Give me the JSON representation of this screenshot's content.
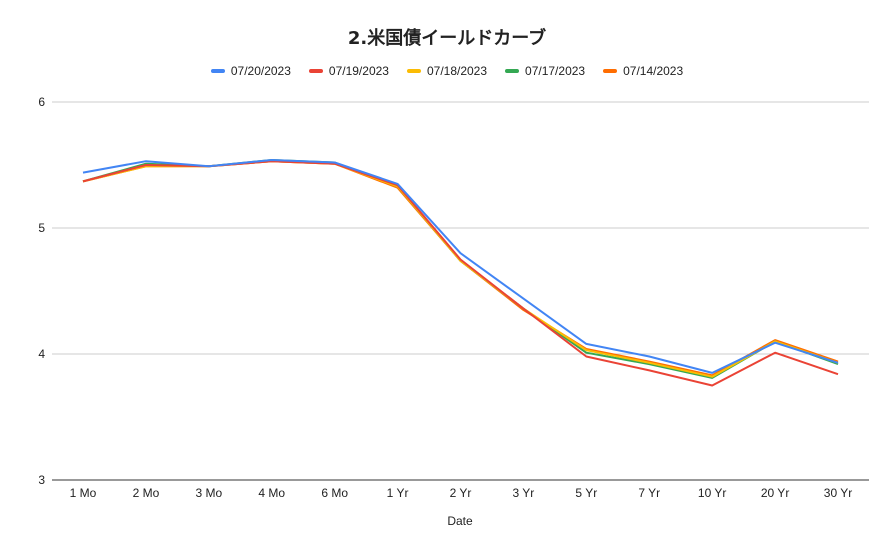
{
  "chart_data": {
    "type": "line",
    "title": "2.米国債イールドカーブ",
    "xlabel": "Date",
    "ylabel": "",
    "ylim": [
      3,
      6
    ],
    "yticks": [
      3,
      4,
      5,
      6
    ],
    "grid": true,
    "legend_position": "top",
    "categories": [
      "1 Mo",
      "2 Mo",
      "3 Mo",
      "4 Mo",
      "6 Mo",
      "1 Yr",
      "2 Yr",
      "3 Yr",
      "5 Yr",
      "7 Yr",
      "10 Yr",
      "20 Yr",
      "30 Yr"
    ],
    "series": [
      {
        "name": "07/20/2023",
        "color": "#4285F4",
        "values": [
          5.44,
          5.53,
          5.49,
          5.54,
          5.52,
          5.35,
          4.8,
          4.44,
          4.08,
          3.98,
          3.85,
          4.09,
          3.93
        ]
      },
      {
        "name": "07/19/2023",
        "color": "#EA4335",
        "values": [
          5.37,
          5.5,
          5.49,
          5.53,
          5.51,
          5.34,
          4.75,
          4.36,
          3.98,
          3.87,
          3.75,
          4.01,
          3.84
        ]
      },
      {
        "name": "07/18/2023",
        "color": "#FBBC04",
        "values": [
          5.37,
          5.49,
          5.49,
          5.53,
          5.51,
          5.33,
          4.74,
          4.36,
          4.03,
          3.93,
          3.82,
          4.1,
          3.93
        ]
      },
      {
        "name": "07/17/2023",
        "color": "#34A853",
        "values": [
          5.37,
          5.51,
          5.49,
          5.54,
          5.52,
          5.33,
          4.74,
          4.36,
          4.01,
          3.92,
          3.81,
          4.1,
          3.92
        ]
      },
      {
        "name": "07/14/2023",
        "color": "#FF6D01",
        "values": [
          5.37,
          5.49,
          5.49,
          5.53,
          5.51,
          5.32,
          4.74,
          4.35,
          4.04,
          3.94,
          3.83,
          4.11,
          3.94
        ]
      }
    ]
  }
}
